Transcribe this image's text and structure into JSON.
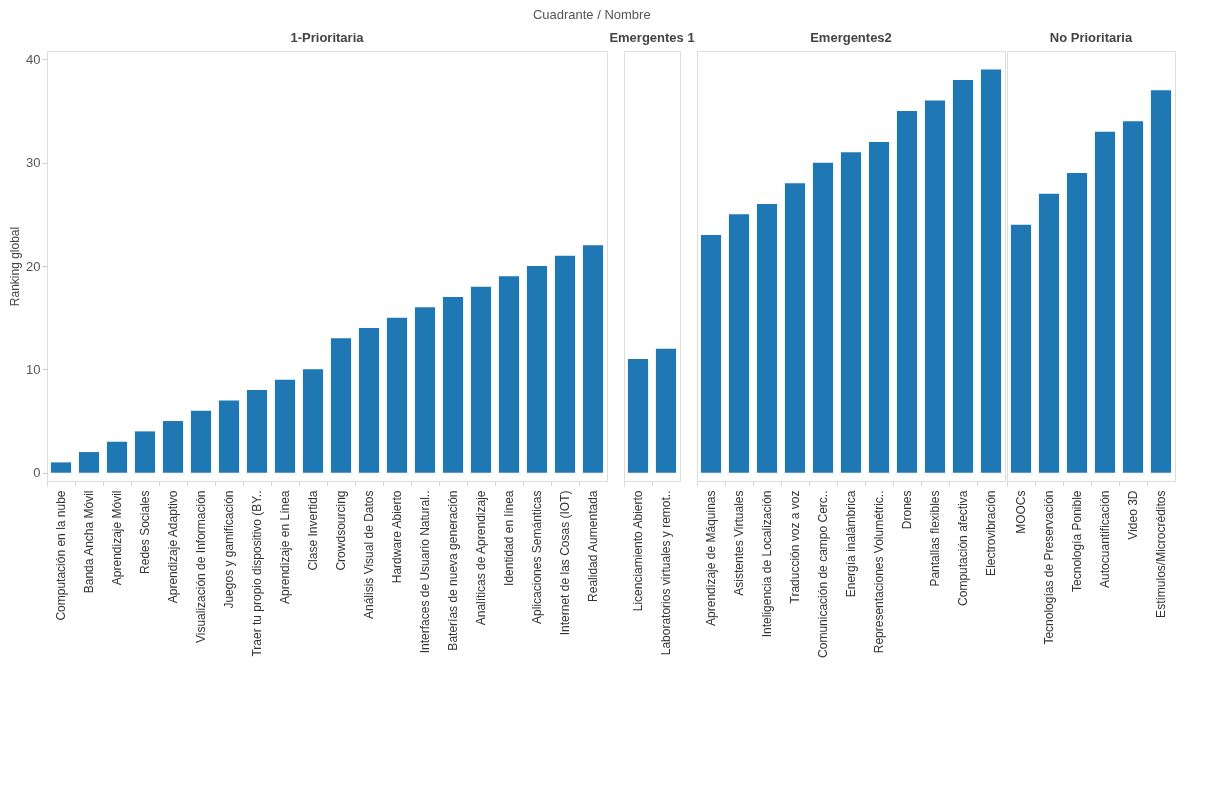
{
  "chart_data": [
    {
      "type": "bar",
      "title": "1-Prioritaria",
      "ylabel": "Ranking global",
      "annotations": [
        "Cuadrante  /  Nombre"
      ],
      "categories": [
        "Computación en la nube",
        "Banda Ancha Móvil",
        "Aprendizaje Móvil",
        "Redes Sociales",
        "Aprendizaje Adaptivo",
        "Visualización de Información",
        "Juegos y gamificación",
        "Traer tu propio dispositivo (BY..",
        "Aprendizaje en Línea",
        "Clase Invertida",
        "Crowdsourcing",
        "Análisis Visual de Datos",
        "Hardware Abierto",
        "Interfaces de Usuario Natural..",
        "Baterías de nueva generación",
        "Analíticas de Aprendizaje",
        "Identidad en línea",
        "Aplicaciones Semánticas",
        "Internet de las Cosas (IOT)",
        "Realidad Aumentada"
      ],
      "values": [
        1,
        2,
        3,
        4,
        5,
        6,
        7,
        8,
        9,
        10,
        13,
        14,
        15,
        16,
        17,
        18,
        19,
        20,
        21,
        22
      ],
      "color": "#1f77b4",
      "ylim": [
        -0.8,
        40.8
      ],
      "yticks": [
        0,
        10,
        20,
        30,
        40
      ],
      "grid": false
    },
    {
      "type": "bar",
      "title": "Emergentes 1",
      "categories": [
        "Licenciamiento Abierto",
        "Laboratorios virtuales y remot.."
      ],
      "values": [
        11,
        12
      ],
      "color": "#1f77b4",
      "ylim": [
        -0.8,
        40.8
      ],
      "tick_labels": "x",
      "grid": false
    },
    {
      "type": "bar",
      "title": "Emergentes2",
      "categories": [
        "Aprendizaje de Máquinas",
        "Asistentes Virtuales",
        "Inteligencia de Localización",
        "Traducción voz a voz",
        "Comunicación de campo Cerc..",
        "Energía inalámbrica",
        "Representaciones Volumétric..",
        "Drones",
        "Pantallas flexibles",
        "Computación afectiva",
        "Electrovibración"
      ],
      "values": [
        23,
        25,
        26,
        28,
        30,
        31,
        32,
        35,
        36,
        38,
        39
      ],
      "color": "#1f77b4",
      "ylim": [
        -0.8,
        40.8
      ],
      "tick_labels": "x",
      "grid": false
    },
    {
      "type": "bar",
      "title": "No Prioritaria",
      "categories": [
        "MOOCs",
        "Tecnologías de Preservación",
        "Tecnología Ponible",
        "Autocuantificación",
        "Video 3D",
        "Estímulos/Microcréditos"
      ],
      "values": [
        24,
        27,
        29,
        33,
        34,
        37
      ],
      "color": "#1f77b4",
      "ylim": [
        -0.8,
        40.8
      ],
      "tick_labels": "x",
      "grid": false
    }
  ]
}
